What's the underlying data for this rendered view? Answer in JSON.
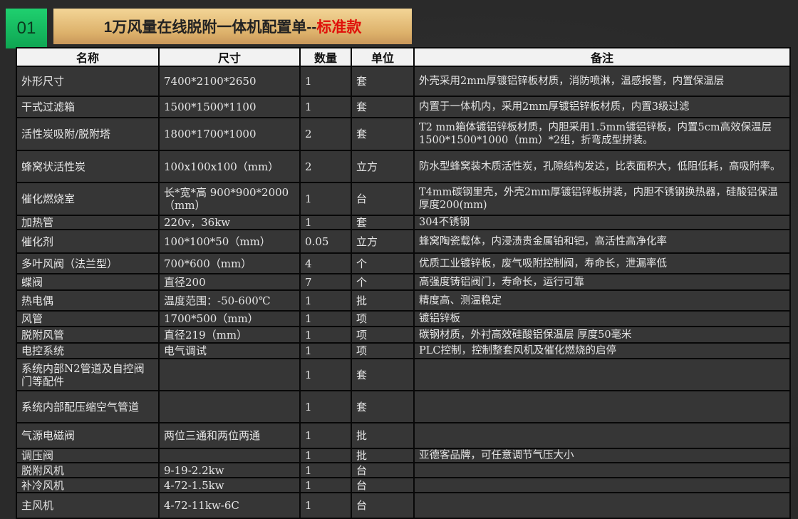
{
  "section_number": "01",
  "title": {
    "main": "1万风量在线脱附一体机配置单--",
    "highlight": "标准款"
  },
  "columns": [
    "名称",
    "尺寸",
    "数量",
    "单位",
    "备注"
  ],
  "rows": [
    [
      "外形尺寸",
      "7400*2100*2650",
      "1",
      "套",
      "外壳采用2mm厚镀铝锌板材质，消防喷淋，温感报警，内置保温层"
    ],
    [
      "干式过滤箱",
      "1500*1500*1100",
      "1",
      "套",
      "内置于一体机内，采用2mm厚镀铝锌板材质，内置3级过滤"
    ],
    [
      "活性炭吸附/脱附塔",
      "1800*1700*1000",
      "2",
      "套",
      "T2 mm箱体镀铝锌板材质，内胆采用1.5mm镀铝锌板，内置5cm高效保温层1500*1500*1000（mm）*2组，折弯成型拼装。"
    ],
    [
      "蜂窝状活性炭",
      "100x100x100（mm）",
      "2",
      "立方",
      "防水型蜂窝装木质活性炭，孔隙结构发达，比表面积大，低阻低耗，高吸附率。"
    ],
    [
      "催化燃烧室",
      "长*宽*高 900*900*2000（mm）",
      "1",
      "台",
      "T4mm碳钢里壳，外壳2mm厚镀铝锌板拼装，内胆不锈钢换热器，硅酸铝保温厚度200(mm)"
    ],
    [
      "加热管",
      "220v，36kw",
      "1",
      "套",
      "304不锈钢"
    ],
    [
      "催化剂",
      "100*100*50（mm）",
      "0.05",
      "立方",
      "蜂窝陶瓷载体，内浸渍贵金属铂和钯，高活性高净化率"
    ],
    [
      "多叶风阀（法兰型）",
      "700*600（mm）",
      "4",
      "个",
      "优质工业镀锌板，废气吸附控制阀，寿命长，泄漏率低"
    ],
    [
      "蝶阀",
      "直径200",
      "7",
      "个",
      "高强度铸铝阀门，寿命长，运行可靠"
    ],
    [
      "热电偶",
      "温度范围：-50-600℃",
      "1",
      "批",
      "精度高、测温稳定"
    ],
    [
      "风管",
      "1700*500（mm）",
      "1",
      "项",
      "镀铝锌板"
    ],
    [
      "脱附风管",
      "直径219（mm）",
      "1",
      "项",
      "碳钢材质，外衬高效硅酸铝保温层 厚度50毫米"
    ],
    [
      "电控系统",
      "电气调试",
      "1",
      "项",
      "PLC控制，控制整套风机及催化燃烧的启停"
    ],
    [
      "系统内部N2管道及自控阀门等配件",
      "",
      "1",
      "套",
      ""
    ],
    [
      "系统内部配压缩空气管道",
      "",
      "1",
      "套",
      ""
    ],
    [
      "气源电磁阀",
      "两位三通和两位两通",
      "1",
      "批",
      ""
    ],
    [
      "调压阀",
      "",
      "1",
      "批",
      "亚德客品牌，可任意调节气压大小"
    ],
    [
      "脱附风机",
      "9-19-2.2kw",
      "1",
      "台",
      ""
    ],
    [
      "补冷风机",
      "4-72-1.5kw",
      "1",
      "台",
      ""
    ],
    [
      "主风机",
      "4-72-11kw-6C",
      "1",
      "台",
      ""
    ]
  ]
}
